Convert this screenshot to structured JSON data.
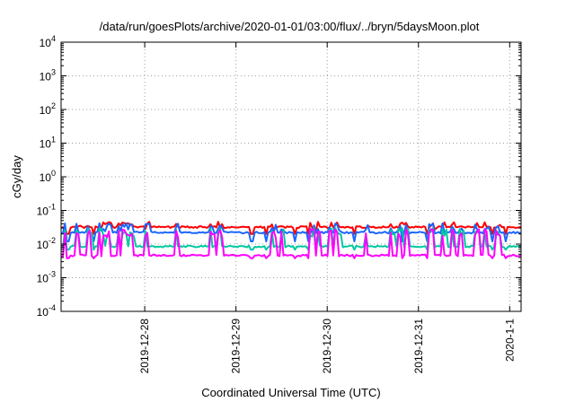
{
  "chart_data": {
    "type": "line",
    "title": "/data/run/goesPlots/archive/2020-01-01/03:00/flux/../bryn/5daysMoon.plot",
    "xlabel": "Coordinated Universal Time (UTC)",
    "ylabel": "cGy/day",
    "yscale": "log",
    "ylim": [
      0.0001,
      10000
    ],
    "y_ticks": [
      {
        "value": 0.0001,
        "base": "10",
        "exp": "-4"
      },
      {
        "value": 0.001,
        "base": "10",
        "exp": "-3"
      },
      {
        "value": 0.01,
        "base": "10",
        "exp": "-2"
      },
      {
        "value": 0.1,
        "base": "10",
        "exp": "-1"
      },
      {
        "value": 1,
        "base": "10",
        "exp": "0"
      },
      {
        "value": 10,
        "base": "10",
        "exp": "1"
      },
      {
        "value": 100,
        "base": "10",
        "exp": "2"
      },
      {
        "value": 1000,
        "base": "10",
        "exp": "3"
      },
      {
        "value": 10000,
        "base": "10",
        "exp": "4"
      }
    ],
    "xlim": [
      "2019-12-27T02:00",
      "2020-01-01T03:00"
    ],
    "x_ticks": [
      {
        "value": "2019-12-28T00:00",
        "label": "2019-12-28"
      },
      {
        "value": "2019-12-29T00:00",
        "label": "2019-12-29"
      },
      {
        "value": "2019-12-30T00:00",
        "label": "2019-12-30"
      },
      {
        "value": "2019-12-31T00:00",
        "label": "2019-12-31"
      },
      {
        "value": "2020-01-01T00:00",
        "label": "2020-1-1"
      }
    ],
    "grid": true,
    "legend": "none",
    "series": [
      {
        "color": "#ff0000",
        "base": 0.032,
        "spike": 0.046,
        "dip": 0.02,
        "spread": 0.0
      },
      {
        "color": "#1a66ff",
        "base": 0.022,
        "spike": 0.042,
        "dip": 0.012,
        "spread": 0.0
      },
      {
        "color": "#00c8a0",
        "base": 0.0085,
        "spike": 0.03,
        "dip": 0.0068,
        "spread": 0.0
      },
      {
        "color": "#ff00ff",
        "base": 0.0046,
        "spike": 0.028,
        "dip": 0.0038,
        "spread": 0.0
      }
    ]
  }
}
